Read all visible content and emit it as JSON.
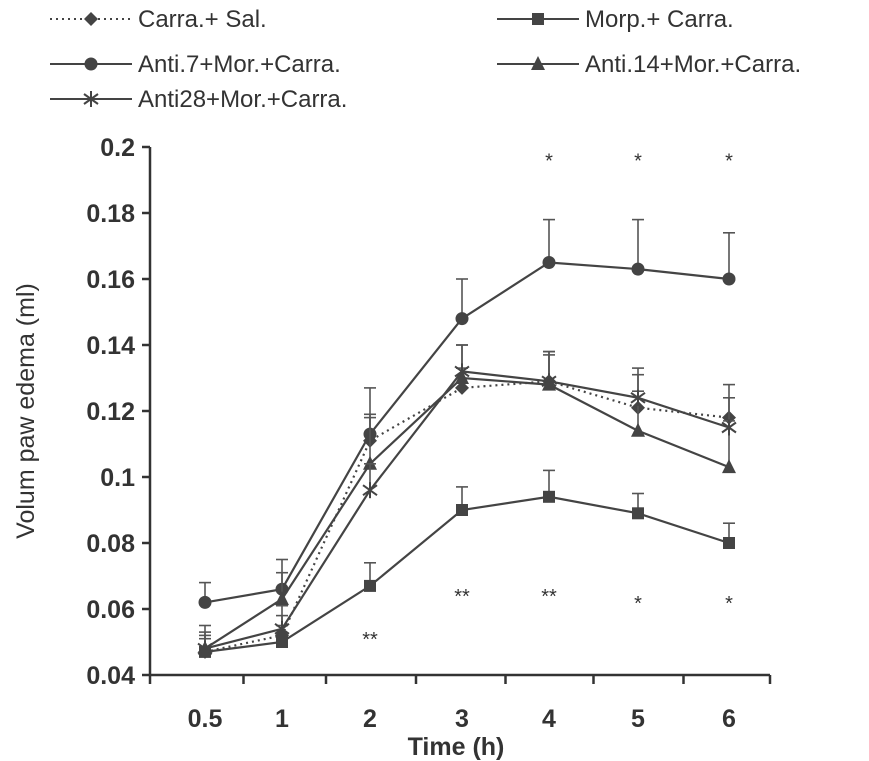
{
  "chart_data": {
    "type": "line",
    "x": [
      "0.5",
      "1",
      "2",
      "3",
      "4",
      "5",
      "6"
    ],
    "xlabel": "Time (h)",
    "ylabel": "Volum paw edema (ml)",
    "ylim": [
      0.04,
      0.2
    ],
    "yticks": [
      "0.04",
      "0.06",
      "0.08",
      "0.1",
      "0.12",
      "0.14",
      "0.16",
      "0.18",
      "0.2"
    ],
    "grid": false,
    "legend_position": "top",
    "series": [
      {
        "name": "Carra.+ Sal.",
        "marker": "diamond",
        "line": "dotted",
        "values": [
          0.047,
          0.052,
          0.111,
          0.127,
          0.129,
          0.121,
          0.118
        ],
        "error": [
          0.004,
          0.006,
          0.008,
          0.006,
          0.008,
          0.01,
          0.01
        ]
      },
      {
        "name": "Morp.+ Carra.",
        "marker": "square",
        "line": "solid",
        "values": [
          0.047,
          0.05,
          0.067,
          0.09,
          0.094,
          0.089,
          0.08
        ],
        "error": [
          0.005,
          0.005,
          0.007,
          0.007,
          0.008,
          0.006,
          0.006
        ]
      },
      {
        "name": "Anti.7+Mor.+Carra.",
        "marker": "circle",
        "line": "solid",
        "values": [
          0.062,
          0.066,
          0.113,
          0.148,
          0.165,
          0.163,
          0.16
        ],
        "error": [
          0.006,
          0.009,
          0.014,
          0.012,
          0.013,
          0.015,
          0.014
        ]
      },
      {
        "name": "Anti.14+Mor.+Carra.",
        "marker": "triangle",
        "line": "solid",
        "values": [
          0.048,
          0.063,
          0.104,
          0.13,
          0.128,
          0.114,
          0.103
        ],
        "error": [
          0.007,
          0.008,
          0.014,
          0.01,
          0.01,
          0.012,
          0.014
        ]
      },
      {
        "name": "Anti28+Mor.+Carra.",
        "marker": "asterisk",
        "line": "solid",
        "values": [
          0.048,
          0.054,
          0.096,
          0.132,
          0.129,
          0.124,
          0.115
        ],
        "error": [
          0.005,
          0.007,
          0.008,
          0.008,
          0.009,
          0.009,
          0.009
        ]
      }
    ],
    "annotations": [
      {
        "x": "4",
        "y": 0.198,
        "text": "*"
      },
      {
        "x": "5",
        "y": 0.198,
        "text": "*"
      },
      {
        "x": "6",
        "y": 0.198,
        "text": "*"
      },
      {
        "x": "2",
        "y": 0.053,
        "text": "**"
      },
      {
        "x": "3",
        "y": 0.066,
        "text": "**"
      },
      {
        "x": "4",
        "y": 0.066,
        "text": "**"
      },
      {
        "x": "5",
        "y": 0.064,
        "text": "*"
      },
      {
        "x": "6",
        "y": 0.064,
        "text": "*"
      }
    ]
  }
}
